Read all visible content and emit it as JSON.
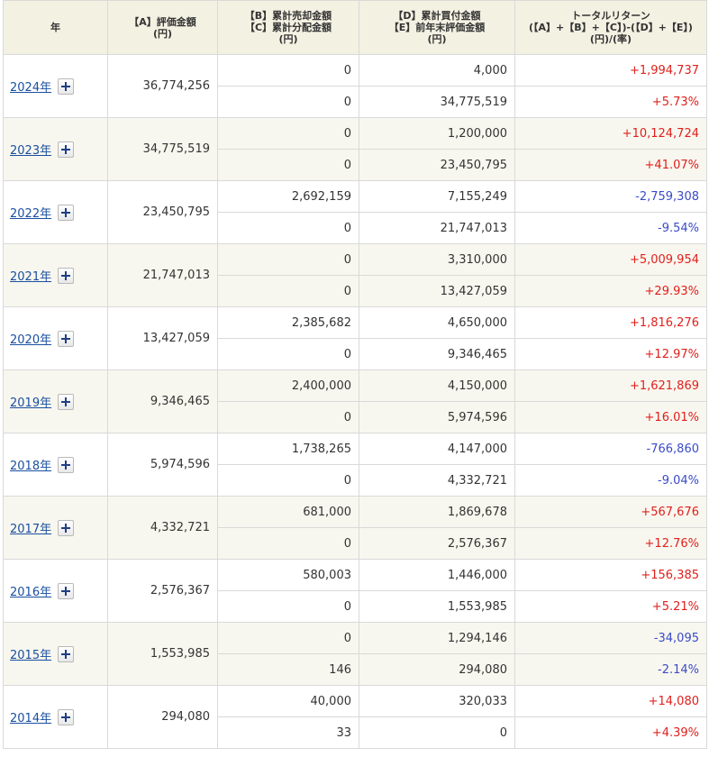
{
  "headers": {
    "year": "年",
    "a": [
      "【A】評価金額",
      "(円)"
    ],
    "bc": [
      "【B】累計売却金額",
      "【C】累計分配金額",
      "(円)"
    ],
    "de": [
      "【D】累計買付金額",
      "【E】前年末評価金額",
      "(円)"
    ],
    "tr": [
      "トータルリターン",
      "(【A】+【B】+【C】)-(【D】+【E】)",
      "(円)/(率)"
    ]
  },
  "rows": [
    {
      "year": "2024年",
      "a": "36,774,256",
      "b": "0",
      "c": "0",
      "d": "4,000",
      "e": "34,775,519",
      "tr_yen": "+1,994,737",
      "tr_rate": "+5.73%",
      "sign": "pos"
    },
    {
      "year": "2023年",
      "a": "34,775,519",
      "b": "0",
      "c": "0",
      "d": "1,200,000",
      "e": "23,450,795",
      "tr_yen": "+10,124,724",
      "tr_rate": "+41.07%",
      "sign": "pos"
    },
    {
      "year": "2022年",
      "a": "23,450,795",
      "b": "2,692,159",
      "c": "0",
      "d": "7,155,249",
      "e": "21,747,013",
      "tr_yen": "-2,759,308",
      "tr_rate": "-9.54%",
      "sign": "neg"
    },
    {
      "year": "2021年",
      "a": "21,747,013",
      "b": "0",
      "c": "0",
      "d": "3,310,000",
      "e": "13,427,059",
      "tr_yen": "+5,009,954",
      "tr_rate": "+29.93%",
      "sign": "pos"
    },
    {
      "year": "2020年",
      "a": "13,427,059",
      "b": "2,385,682",
      "c": "0",
      "d": "4,650,000",
      "e": "9,346,465",
      "tr_yen": "+1,816,276",
      "tr_rate": "+12.97%",
      "sign": "pos"
    },
    {
      "year": "2019年",
      "a": "9,346,465",
      "b": "2,400,000",
      "c": "0",
      "d": "4,150,000",
      "e": "5,974,596",
      "tr_yen": "+1,621,869",
      "tr_rate": "+16.01%",
      "sign": "pos"
    },
    {
      "year": "2018年",
      "a": "5,974,596",
      "b": "1,738,265",
      "c": "0",
      "d": "4,147,000",
      "e": "4,332,721",
      "tr_yen": "-766,860",
      "tr_rate": "-9.04%",
      "sign": "neg"
    },
    {
      "year": "2017年",
      "a": "4,332,721",
      "b": "681,000",
      "c": "0",
      "d": "1,869,678",
      "e": "2,576,367",
      "tr_yen": "+567,676",
      "tr_rate": "+12.76%",
      "sign": "pos"
    },
    {
      "year": "2016年",
      "a": "2,576,367",
      "b": "580,003",
      "c": "0",
      "d": "1,446,000",
      "e": "1,553,985",
      "tr_yen": "+156,385",
      "tr_rate": "+5.21%",
      "sign": "pos"
    },
    {
      "year": "2015年",
      "a": "1,553,985",
      "b": "0",
      "c": "146",
      "d": "1,294,146",
      "e": "294,080",
      "tr_yen": "-34,095",
      "tr_rate": "-2.14%",
      "sign": "neg"
    },
    {
      "year": "2014年",
      "a": "294,080",
      "b": "40,000",
      "c": "33",
      "d": "320,033",
      "e": "0",
      "tr_yen": "+14,080",
      "tr_rate": "+4.39%",
      "sign": "pos"
    }
  ],
  "colors": {
    "positive": "#e0201c",
    "negative": "#3b4bc8",
    "header_bg": "#f3f1e2",
    "row_shade": "#f8f7ef",
    "link": "#1a4fa0"
  },
  "icons": {
    "expand": "plus-icon"
  }
}
